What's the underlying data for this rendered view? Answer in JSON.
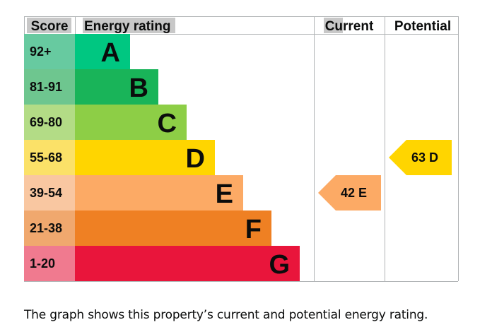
{
  "chart_data": {
    "type": "bar",
    "headers": {
      "score": "Score",
      "rating": "Energy rating",
      "current": "Current",
      "potential": "Potential"
    },
    "bands": [
      {
        "score": "92+",
        "letter": "A",
        "min": 92,
        "max": 100,
        "color": "#00c781",
        "score_color": "#67caa0"
      },
      {
        "score": "81-91",
        "letter": "B",
        "min": 81,
        "max": 91,
        "color": "#19b459",
        "score_color": "#6ec68f"
      },
      {
        "score": "69-80",
        "letter": "C",
        "min": 69,
        "max": 80,
        "color": "#8dce46",
        "score_color": "#b3dc86"
      },
      {
        "score": "55-68",
        "letter": "D",
        "min": 55,
        "max": 68,
        "color": "#ffd500",
        "score_color": "#fbe168"
      },
      {
        "score": "39-54",
        "letter": "E",
        "min": 39,
        "max": 54,
        "color": "#fcaa65",
        "score_color": "#f9c7a1"
      },
      {
        "score": "21-38",
        "letter": "F",
        "min": 21,
        "max": 38,
        "color": "#ef8023",
        "score_color": "#f0a86e"
      },
      {
        "score": "1-20",
        "letter": "G",
        "min": 1,
        "max": 20,
        "color": "#e9153b",
        "score_color": "#f07a8f"
      }
    ],
    "current": {
      "value": 42,
      "letter": "E",
      "label": "42 E",
      "color": "#fcaa65"
    },
    "potential": {
      "value": 63,
      "letter": "D",
      "label": "63 D",
      "color": "#ffd500"
    }
  },
  "caption": "The graph shows this property’s current and potential energy rating."
}
